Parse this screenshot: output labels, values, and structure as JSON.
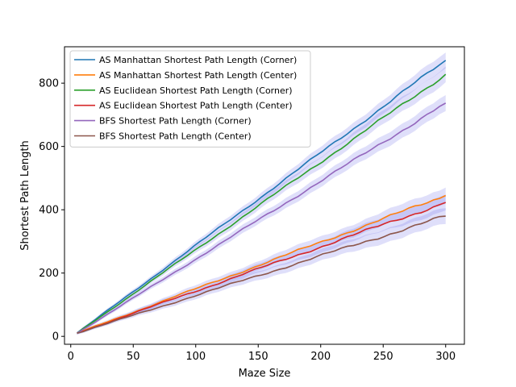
{
  "chart_data": {
    "type": "line",
    "title": "",
    "xlabel": "Maze Size",
    "ylabel": "Shortest Path Length",
    "xlim": [
      -5,
      315
    ],
    "ylim": [
      -25,
      915
    ],
    "xticks": [
      0,
      50,
      100,
      150,
      200,
      250,
      300
    ],
    "yticks": [
      0,
      200,
      400,
      600,
      800
    ],
    "x_start": 5,
    "x_end": 300,
    "legend_position": "top-left",
    "grid": false,
    "series": [
      {
        "name": "AS Manhattan Shortest Path Length (Corner)",
        "color": "#1f77b4",
        "y_start": 10,
        "y_end": 872
      },
      {
        "name": "AS Manhattan Shortest Path Length (Center)",
        "color": "#ff7f0e",
        "y_start": 10,
        "y_end": 445
      },
      {
        "name": "AS Euclidean Shortest Path Length (Corner)",
        "color": "#2ca02c",
        "y_start": 10,
        "y_end": 828
      },
      {
        "name": "AS Euclidean Shortest Path Length (Center)",
        "color": "#d62728",
        "y_start": 10,
        "y_end": 423
      },
      {
        "name": "BFS Shortest Path Length (Corner)",
        "color": "#9467bd",
        "y_start": 10,
        "y_end": 737
      },
      {
        "name": "BFS Shortest Path Length (Center)",
        "color": "#8c564b",
        "y_start": 10,
        "y_end": 380
      }
    ],
    "confidence_band": {
      "color": "#6f6fe6",
      "opacity": 0.22,
      "half_width_at_end": 25
    }
  }
}
